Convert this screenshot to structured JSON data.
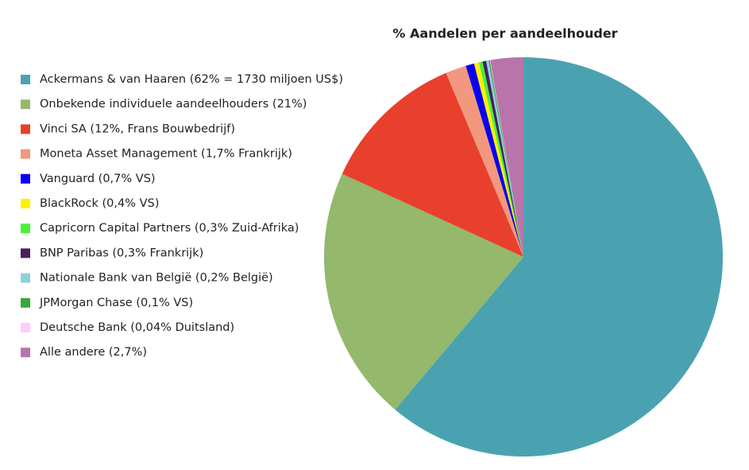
{
  "chart_data": {
    "type": "pie",
    "title": "% Aandelen per aandeelhouder",
    "categories": [
      "Ackermans & van Haaren (62% = 1730 miljoen US$)",
      "Onbekende individuele aandeelhouders (21%)",
      "Vinci SA (12%, Frans Bouwbedrijf)",
      "Moneta Asset Management (1,7% Frankrijk)",
      "Vanguard (0,7% VS)",
      "BlackRock (0,4% VS)",
      "Capricorn Capital Partners (0,3% Zuid-Afrika)",
      "BNP Paribas (0,3% Frankrijk)",
      "Nationale Bank van België (0,2% België)",
      "JPMorgan Chase (0,1% VS)",
      "Deutsche Bank (0,04% Duitsland)",
      "Alle andere (2,7%)"
    ],
    "values": [
      62,
      21,
      12,
      1.7,
      0.7,
      0.4,
      0.3,
      0.3,
      0.2,
      0.1,
      0.04,
      2.7
    ],
    "colors": [
      "#4aa2b0",
      "#94b86c",
      "#e8402c",
      "#f2987f",
      "#0a00ee",
      "#fff000",
      "#4af03a",
      "#4a1f62",
      "#8ed0e0",
      "#36a83a",
      "#ffccff",
      "#b974aa"
    ],
    "legend": "left"
  }
}
